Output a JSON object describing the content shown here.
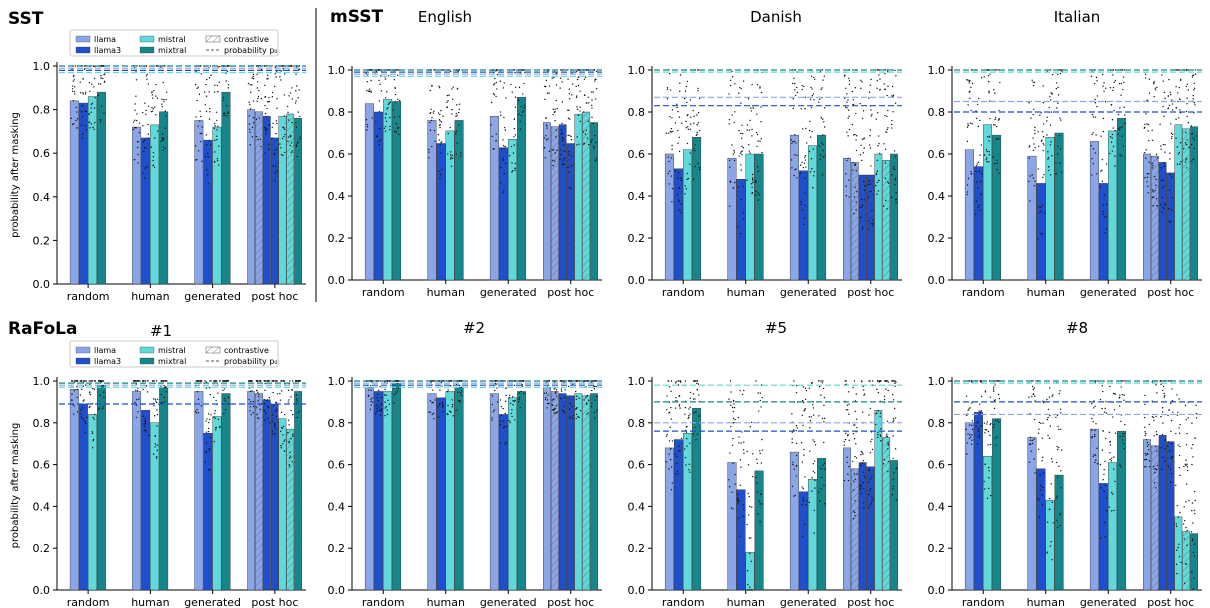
{
  "figure": {
    "section_labels": [
      {
        "id": "sst",
        "text": "SST"
      },
      {
        "id": "msst",
        "text": "mSST"
      },
      {
        "id": "rafola",
        "text": "RaFoLa"
      }
    ],
    "ylabel": "probability after masking",
    "yticks": [
      "0.0",
      "0.2",
      "0.4",
      "0.6",
      "0.8",
      "1.0"
    ],
    "legend": {
      "entries": [
        {
          "id": "llama",
          "label": "llama",
          "color": "#8aa6e8"
        },
        {
          "id": "llama3",
          "label": "llama3",
          "color": "#1f4fcc"
        },
        {
          "id": "mistral",
          "label": "mistral",
          "color": "#5fd9d9"
        },
        {
          "id": "mixtral",
          "label": "mixtral",
          "color": "#16868a"
        },
        {
          "id": "contrastive",
          "label": "contrastive",
          "style": "hatched"
        },
        {
          "id": "p0",
          "label": "probability p₀",
          "style": "dashed"
        }
      ]
    },
    "colors": {
      "llama": "#8aa6e8",
      "llama3": "#1f4fcc",
      "mistral": "#5fd9d9",
      "mixtral": "#16868a"
    }
  },
  "chart_data": [
    {
      "type": "bar",
      "title": "",
      "ylim": [
        0,
        1
      ],
      "ylabel": "probability after masking",
      "categories": [
        "random",
        "human",
        "generated",
        "post hoc"
      ],
      "series": [
        {
          "name": "llama",
          "values": [
            0.84,
            0.72,
            0.75,
            0.8
          ],
          "contrastive": 0.79
        },
        {
          "name": "llama3",
          "values": [
            0.83,
            0.67,
            0.66,
            0.77
          ],
          "contrastive": 0.67
        },
        {
          "name": "mistral",
          "values": [
            0.86,
            0.73,
            0.72,
            0.77
          ],
          "contrastive": 0.78
        },
        {
          "name": "mixtral",
          "values": [
            0.88,
            0.79,
            0.88,
            0.76
          ],
          "contrastive": null
        }
      ],
      "p0": {
        "llama": 0.99,
        "llama3": 0.98,
        "mistral": 0.97,
        "mixtral": 1.0
      }
    },
    {
      "type": "bar",
      "title": "English",
      "ylim": [
        0,
        1
      ],
      "categories": [
        "random",
        "human",
        "generated",
        "post hoc"
      ],
      "series": [
        {
          "name": "llama",
          "values": [
            0.84,
            0.76,
            0.78,
            0.75
          ],
          "contrastive": 0.73
        },
        {
          "name": "llama3",
          "values": [
            0.8,
            0.65,
            0.63,
            0.74
          ],
          "contrastive": 0.65
        },
        {
          "name": "mistral",
          "values": [
            0.86,
            0.71,
            0.67,
            0.79
          ],
          "contrastive": 0.8
        },
        {
          "name": "mixtral",
          "values": [
            0.85,
            0.76,
            0.87,
            0.75
          ],
          "contrastive": null
        }
      ],
      "p0": {
        "llama": 0.98,
        "llama3": 0.99,
        "mistral": 0.97,
        "mixtral": 1.0
      }
    },
    {
      "type": "bar",
      "title": "Danish",
      "ylim": [
        0,
        1
      ],
      "categories": [
        "random",
        "human",
        "generated",
        "post hoc"
      ],
      "series": [
        {
          "name": "llama",
          "values": [
            0.6,
            0.58,
            0.69,
            0.58
          ],
          "contrastive": 0.56
        },
        {
          "name": "llama3",
          "values": [
            0.53,
            0.48,
            0.52,
            0.5
          ],
          "contrastive": 0.5
        },
        {
          "name": "mistral",
          "values": [
            0.62,
            0.6,
            0.64,
            0.6
          ],
          "contrastive": 0.57
        },
        {
          "name": "mixtral",
          "values": [
            0.68,
            0.6,
            0.69,
            0.6
          ],
          "contrastive": null
        }
      ],
      "p0": {
        "llama": 0.87,
        "llama3": 0.83,
        "mistral": 0.99,
        "mixtral": 1.0
      }
    },
    {
      "type": "bar",
      "title": "Italian",
      "ylim": [
        0,
        1
      ],
      "categories": [
        "random",
        "human",
        "generated",
        "post hoc"
      ],
      "series": [
        {
          "name": "llama",
          "values": [
            0.62,
            0.59,
            0.66,
            0.6
          ],
          "contrastive": 0.59
        },
        {
          "name": "llama3",
          "values": [
            0.54,
            0.46,
            0.46,
            0.56
          ],
          "contrastive": 0.51
        },
        {
          "name": "mistral",
          "values": [
            0.74,
            0.68,
            0.71,
            0.74
          ],
          "contrastive": 0.72
        },
        {
          "name": "mixtral",
          "values": [
            0.69,
            0.7,
            0.77,
            0.73
          ],
          "contrastive": null
        }
      ],
      "p0": {
        "llama": 0.85,
        "llama3": 0.8,
        "mistral": 0.99,
        "mixtral": 1.0
      }
    },
    {
      "type": "bar",
      "title": "#1",
      "ylim": [
        0,
        1
      ],
      "ylabel": "probability after masking",
      "categories": [
        "random",
        "human",
        "generated",
        "post hoc"
      ],
      "series": [
        {
          "name": "llama",
          "values": [
            0.96,
            0.95,
            0.95,
            0.95
          ],
          "contrastive": 0.94
        },
        {
          "name": "llama3",
          "values": [
            0.89,
            0.86,
            0.75,
            0.91
          ],
          "contrastive": 0.89
        },
        {
          "name": "mistral",
          "values": [
            0.84,
            0.8,
            0.83,
            0.82
          ],
          "contrastive": 0.77
        },
        {
          "name": "mixtral",
          "values": [
            0.98,
            0.97,
            0.94,
            0.95
          ],
          "contrastive": null
        }
      ],
      "p0": {
        "llama": 0.98,
        "llama3": 0.89,
        "mistral": 0.97,
        "mixtral": 0.99
      }
    },
    {
      "type": "bar",
      "title": "#2",
      "ylim": [
        0,
        1
      ],
      "categories": [
        "random",
        "human",
        "generated",
        "post hoc"
      ],
      "series": [
        {
          "name": "llama",
          "values": [
            0.97,
            0.94,
            0.94,
            0.97
          ],
          "contrastive": 0.95
        },
        {
          "name": "llama3",
          "values": [
            0.95,
            0.92,
            0.84,
            0.94
          ],
          "contrastive": 0.93
        },
        {
          "name": "mistral",
          "values": [
            0.95,
            0.95,
            0.92,
            0.94
          ],
          "contrastive": 0.93
        },
        {
          "name": "mixtral",
          "values": [
            0.99,
            0.97,
            0.95,
            0.94
          ],
          "contrastive": null
        }
      ],
      "p0": {
        "llama": 0.99,
        "llama3": 0.98,
        "mistral": 0.97,
        "mixtral": 1.0
      }
    },
    {
      "type": "bar",
      "title": "#5",
      "ylim": [
        0,
        1
      ],
      "categories": [
        "random",
        "human",
        "generated",
        "post hoc"
      ],
      "series": [
        {
          "name": "llama",
          "values": [
            0.68,
            0.61,
            0.66,
            0.68
          ],
          "contrastive": 0.58
        },
        {
          "name": "llama3",
          "values": [
            0.72,
            0.48,
            0.47,
            0.61
          ],
          "contrastive": 0.59
        },
        {
          "name": "mistral",
          "values": [
            0.75,
            0.18,
            0.53,
            0.86
          ],
          "contrastive": 0.73
        },
        {
          "name": "mixtral",
          "values": [
            0.87,
            0.57,
            0.63,
            0.62
          ],
          "contrastive": null
        }
      ],
      "p0": {
        "llama": 0.8,
        "llama3": 0.76,
        "mistral": 0.98,
        "mixtral": 0.9
      }
    },
    {
      "type": "bar",
      "title": "#8",
      "ylim": [
        0,
        1
      ],
      "categories": [
        "random",
        "human",
        "generated",
        "post hoc"
      ],
      "series": [
        {
          "name": "llama",
          "values": [
            0.8,
            0.73,
            0.77,
            0.72
          ],
          "contrastive": 0.69
        },
        {
          "name": "llama3",
          "values": [
            0.85,
            0.58,
            0.51,
            0.74
          ],
          "contrastive": 0.71
        },
        {
          "name": "mistral",
          "values": [
            0.64,
            0.43,
            0.61,
            0.35
          ],
          "contrastive": 0.28
        },
        {
          "name": "mixtral",
          "values": [
            0.82,
            0.55,
            0.76,
            0.27
          ],
          "contrastive": null
        }
      ],
      "p0": {
        "llama": 0.84,
        "llama3": 0.9,
        "mistral": 0.99,
        "mixtral": 1.0
      }
    }
  ]
}
